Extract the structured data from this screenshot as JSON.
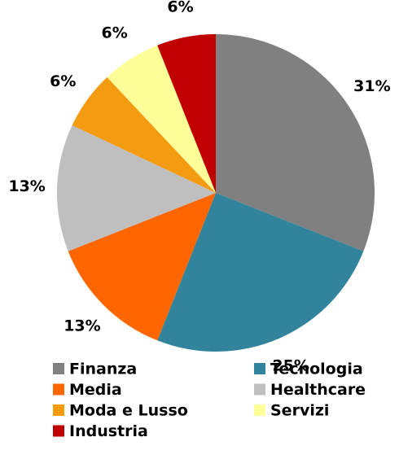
{
  "chart_data": {
    "type": "pie",
    "categories": [
      "Finanza",
      "Tecnologia",
      "Media",
      "Healthcare",
      "Moda e Lusso",
      "Servizi",
      "Industria"
    ],
    "values": [
      31,
      25,
      13,
      13,
      6,
      6,
      6
    ],
    "value_labels": [
      "31%",
      "25%",
      "13%",
      "13%",
      "6%",
      "6%",
      "6%"
    ],
    "colors": [
      "#808080",
      "#31849b",
      "#ff6600",
      "#bfbfbf",
      "#f39c12",
      "#ffff99",
      "#c00000"
    ],
    "legend": "bottom"
  }
}
